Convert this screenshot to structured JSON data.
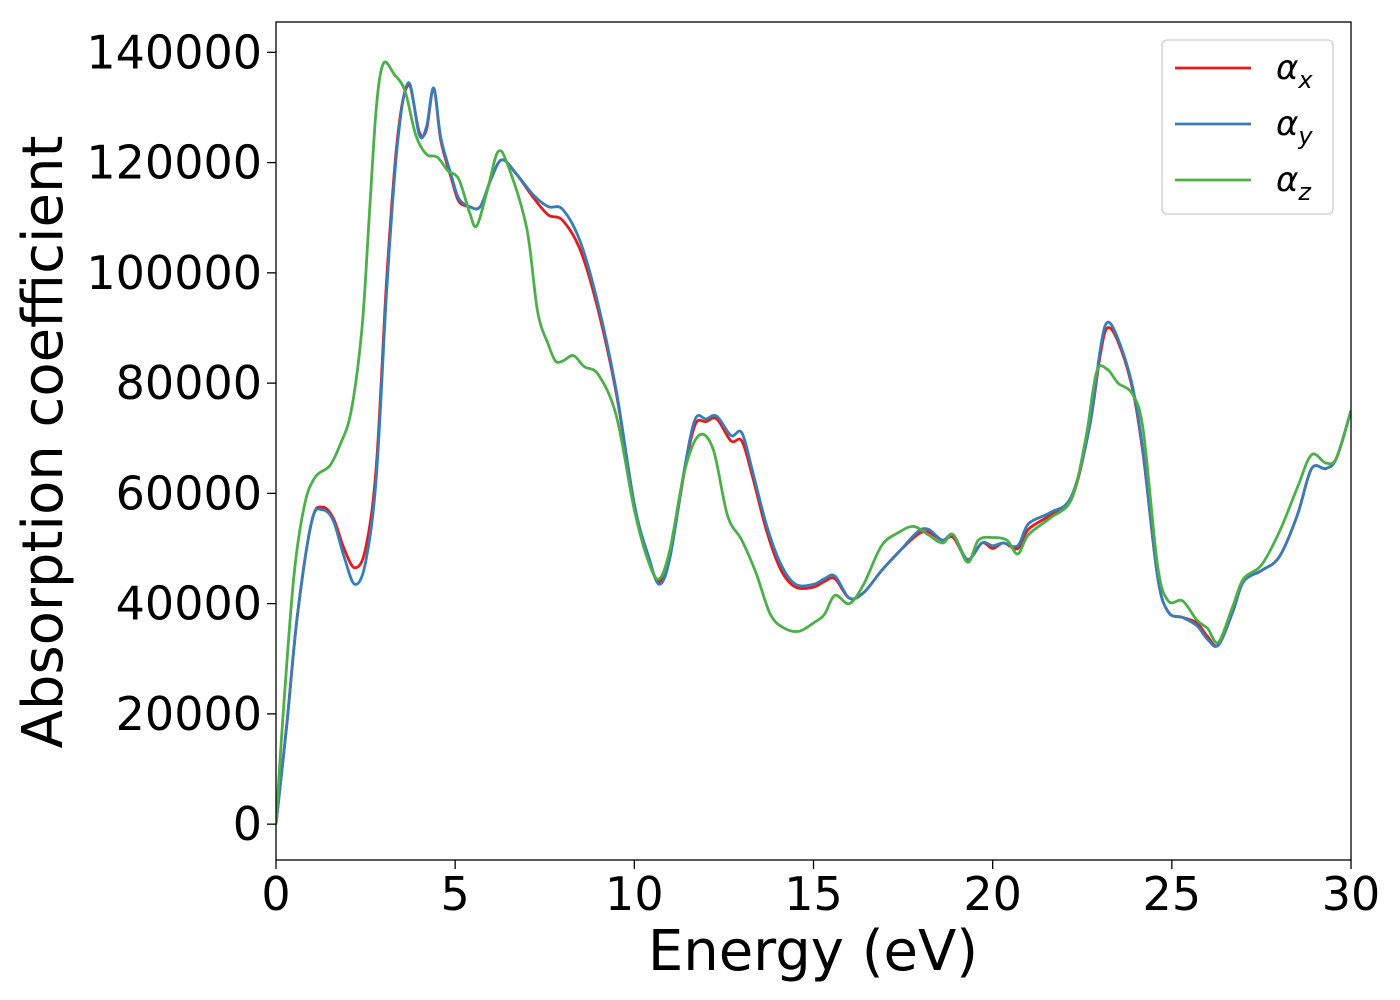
{
  "chart_data": {
    "type": "line",
    "title": "",
    "xlabel": "Energy (eV)",
    "ylabel": "Absorption coefficient",
    "xlim": [
      0,
      30
    ],
    "ylim": [
      -6500,
      145500
    ],
    "xticks": [
      0,
      5,
      10,
      15,
      20,
      25,
      30
    ],
    "yticks": [
      0,
      20000,
      40000,
      60000,
      80000,
      100000,
      120000,
      140000
    ],
    "grid": false,
    "legend_position": "top-right",
    "series": [
      {
        "name": "αx",
        "legend_base": "α",
        "legend_sub": "x",
        "color": "#e41a1c",
        "points": [
          [
            0,
            0
          ],
          [
            0.3,
            18000
          ],
          [
            0.6,
            38000
          ],
          [
            1.0,
            55000
          ],
          [
            1.3,
            57500
          ],
          [
            1.6,
            55500
          ],
          [
            1.9,
            50000
          ],
          [
            2.2,
            46500
          ],
          [
            2.5,
            50000
          ],
          [
            2.8,
            65000
          ],
          [
            3.1,
            100000
          ],
          [
            3.4,
            125000
          ],
          [
            3.7,
            134000
          ],
          [
            4.0,
            125500
          ],
          [
            4.2,
            126000
          ],
          [
            4.4,
            133500
          ],
          [
            4.6,
            124000
          ],
          [
            4.9,
            117000
          ],
          [
            5.1,
            113000
          ],
          [
            5.4,
            112000
          ],
          [
            5.7,
            112000
          ],
          [
            6.0,
            117000
          ],
          [
            6.3,
            120500
          ],
          [
            6.7,
            118000
          ],
          [
            7.2,
            113500
          ],
          [
            7.6,
            110500
          ],
          [
            8.0,
            109500
          ],
          [
            8.5,
            104000
          ],
          [
            9.0,
            93000
          ],
          [
            9.5,
            78000
          ],
          [
            10.0,
            58000
          ],
          [
            10.4,
            48000
          ],
          [
            10.7,
            44000
          ],
          [
            11.0,
            49000
          ],
          [
            11.4,
            64000
          ],
          [
            11.7,
            72500
          ],
          [
            12.0,
            73000
          ],
          [
            12.3,
            73500
          ],
          [
            12.7,
            69500
          ],
          [
            13.0,
            69500
          ],
          [
            13.3,
            63000
          ],
          [
            13.7,
            53000
          ],
          [
            14.1,
            46000
          ],
          [
            14.5,
            43000
          ],
          [
            15.0,
            43000
          ],
          [
            15.3,
            44000
          ],
          [
            15.6,
            44500
          ],
          [
            16.0,
            41000
          ],
          [
            16.4,
            42000
          ],
          [
            16.9,
            46000
          ],
          [
            17.4,
            49500
          ],
          [
            17.9,
            52500
          ],
          [
            18.2,
            53000
          ],
          [
            18.6,
            51500
          ],
          [
            18.9,
            52000
          ],
          [
            19.3,
            48000
          ],
          [
            19.7,
            51000
          ],
          [
            20.0,
            50000
          ],
          [
            20.3,
            51000
          ],
          [
            20.7,
            50000
          ],
          [
            21.0,
            53500
          ],
          [
            21.6,
            56000
          ],
          [
            22.2,
            59000
          ],
          [
            22.7,
            72000
          ],
          [
            23.0,
            85000
          ],
          [
            23.2,
            90000
          ],
          [
            23.5,
            87500
          ],
          [
            23.9,
            79000
          ],
          [
            24.2,
            67000
          ],
          [
            24.6,
            45000
          ],
          [
            24.9,
            38500
          ],
          [
            25.3,
            37500
          ],
          [
            25.7,
            36500
          ],
          [
            26.0,
            34000
          ],
          [
            26.3,
            32500
          ],
          [
            26.7,
            38500
          ],
          [
            27.0,
            44000
          ],
          [
            27.5,
            46000
          ],
          [
            28.0,
            48500
          ],
          [
            28.5,
            56000
          ],
          [
            28.9,
            64500
          ],
          [
            29.3,
            64500
          ],
          [
            29.6,
            66500
          ],
          [
            30.0,
            75000
          ]
        ]
      },
      {
        "name": "αy",
        "legend_base": "α",
        "legend_sub": "y",
        "color": "#377eb8",
        "points": [
          [
            0,
            0
          ],
          [
            0.3,
            18000
          ],
          [
            0.6,
            38000
          ],
          [
            1.0,
            55000
          ],
          [
            1.3,
            57000
          ],
          [
            1.6,
            55000
          ],
          [
            1.9,
            48500
          ],
          [
            2.2,
            43500
          ],
          [
            2.5,
            47500
          ],
          [
            2.8,
            63000
          ],
          [
            3.1,
            98000
          ],
          [
            3.4,
            124000
          ],
          [
            3.7,
            134500
          ],
          [
            4.0,
            125000
          ],
          [
            4.2,
            126500
          ],
          [
            4.4,
            133500
          ],
          [
            4.6,
            124500
          ],
          [
            4.9,
            117500
          ],
          [
            5.1,
            113500
          ],
          [
            5.4,
            112000
          ],
          [
            5.7,
            112000
          ],
          [
            6.0,
            117000
          ],
          [
            6.3,
            120500
          ],
          [
            6.7,
            118000
          ],
          [
            7.2,
            114000
          ],
          [
            7.6,
            112000
          ],
          [
            8.0,
            111500
          ],
          [
            8.5,
            105500
          ],
          [
            9.0,
            94000
          ],
          [
            9.5,
            78500
          ],
          [
            10.0,
            58000
          ],
          [
            10.4,
            48500
          ],
          [
            10.7,
            43500
          ],
          [
            11.0,
            48500
          ],
          [
            11.4,
            64500
          ],
          [
            11.7,
            73500
          ],
          [
            12.0,
            73500
          ],
          [
            12.3,
            74000
          ],
          [
            12.7,
            70500
          ],
          [
            13.0,
            71000
          ],
          [
            13.3,
            64000
          ],
          [
            13.7,
            54000
          ],
          [
            14.1,
            47000
          ],
          [
            14.5,
            43500
          ],
          [
            15.0,
            43500
          ],
          [
            15.3,
            44500
          ],
          [
            15.6,
            45000
          ],
          [
            16.0,
            41000
          ],
          [
            16.4,
            42000
          ],
          [
            16.9,
            46000
          ],
          [
            17.4,
            49500
          ],
          [
            17.9,
            53000
          ],
          [
            18.2,
            53500
          ],
          [
            18.6,
            51500
          ],
          [
            18.9,
            52500
          ],
          [
            19.3,
            48000
          ],
          [
            19.7,
            51000
          ],
          [
            20.0,
            50500
          ],
          [
            20.3,
            51000
          ],
          [
            20.7,
            50500
          ],
          [
            21.0,
            54500
          ],
          [
            21.6,
            56500
          ],
          [
            22.2,
            59500
          ],
          [
            22.7,
            72000
          ],
          [
            23.0,
            86000
          ],
          [
            23.2,
            91000
          ],
          [
            23.5,
            88000
          ],
          [
            23.9,
            79500
          ],
          [
            24.2,
            67500
          ],
          [
            24.6,
            45000
          ],
          [
            24.9,
            38500
          ],
          [
            25.3,
            37500
          ],
          [
            25.7,
            36000
          ],
          [
            26.0,
            33500
          ],
          [
            26.3,
            32500
          ],
          [
            26.7,
            38500
          ],
          [
            27.0,
            44000
          ],
          [
            27.5,
            46000
          ],
          [
            28.0,
            48500
          ],
          [
            28.5,
            56000
          ],
          [
            28.9,
            64500
          ],
          [
            29.3,
            64500
          ],
          [
            29.6,
            66500
          ],
          [
            30.0,
            75000
          ]
        ]
      },
      {
        "name": "αz",
        "legend_base": "α",
        "legend_sub": "z",
        "color": "#4daf4a",
        "points": [
          [
            0,
            0
          ],
          [
            0.2,
            20000
          ],
          [
            0.5,
            45000
          ],
          [
            0.8,
            58000
          ],
          [
            1.1,
            63000
          ],
          [
            1.5,
            65000
          ],
          [
            1.8,
            69000
          ],
          [
            2.1,
            75000
          ],
          [
            2.4,
            90000
          ],
          [
            2.6,
            110000
          ],
          [
            2.8,
            130000
          ],
          [
            3.0,
            138000
          ],
          [
            3.3,
            136000
          ],
          [
            3.6,
            133000
          ],
          [
            3.9,
            125000
          ],
          [
            4.2,
            121500
          ],
          [
            4.5,
            121000
          ],
          [
            4.8,
            118500
          ],
          [
            5.1,
            117000
          ],
          [
            5.4,
            111000
          ],
          [
            5.6,
            108500
          ],
          [
            5.9,
            115000
          ],
          [
            6.2,
            122000
          ],
          [
            6.5,
            119000
          ],
          [
            7.0,
            108000
          ],
          [
            7.3,
            93000
          ],
          [
            7.6,
            87000
          ],
          [
            7.8,
            84000
          ],
          [
            8.0,
            84000
          ],
          [
            8.3,
            85000
          ],
          [
            8.6,
            83000
          ],
          [
            9.0,
            81500
          ],
          [
            9.5,
            74000
          ],
          [
            10.0,
            57000
          ],
          [
            10.4,
            47500
          ],
          [
            10.7,
            44500
          ],
          [
            11.0,
            50000
          ],
          [
            11.4,
            64000
          ],
          [
            11.8,
            70500
          ],
          [
            12.2,
            68000
          ],
          [
            12.6,
            56000
          ],
          [
            13.0,
            51500
          ],
          [
            13.4,
            45500
          ],
          [
            13.8,
            38000
          ],
          [
            14.2,
            35500
          ],
          [
            14.6,
            35000
          ],
          [
            15.0,
            36500
          ],
          [
            15.3,
            38000
          ],
          [
            15.6,
            41500
          ],
          [
            16.0,
            40000
          ],
          [
            16.4,
            43500
          ],
          [
            16.9,
            50500
          ],
          [
            17.4,
            53000
          ],
          [
            17.8,
            54000
          ],
          [
            18.2,
            52500
          ],
          [
            18.6,
            51000
          ],
          [
            18.9,
            52500
          ],
          [
            19.3,
            47500
          ],
          [
            19.6,
            51500
          ],
          [
            20.0,
            52000
          ],
          [
            20.4,
            51500
          ],
          [
            20.7,
            49000
          ],
          [
            21.0,
            52500
          ],
          [
            21.6,
            55500
          ],
          [
            22.2,
            59000
          ],
          [
            22.6,
            70000
          ],
          [
            22.9,
            82000
          ],
          [
            23.2,
            82500
          ],
          [
            23.5,
            80000
          ],
          [
            23.9,
            78000
          ],
          [
            24.2,
            71500
          ],
          [
            24.6,
            47000
          ],
          [
            24.9,
            40500
          ],
          [
            25.3,
            40500
          ],
          [
            25.7,
            37000
          ],
          [
            26.0,
            35500
          ],
          [
            26.3,
            33000
          ],
          [
            26.7,
            39500
          ],
          [
            27.0,
            44500
          ],
          [
            27.5,
            47000
          ],
          [
            28.0,
            53000
          ],
          [
            28.5,
            61000
          ],
          [
            28.9,
            67000
          ],
          [
            29.3,
            65500
          ],
          [
            29.6,
            66500
          ],
          [
            30.0,
            75000
          ]
        ]
      }
    ]
  }
}
